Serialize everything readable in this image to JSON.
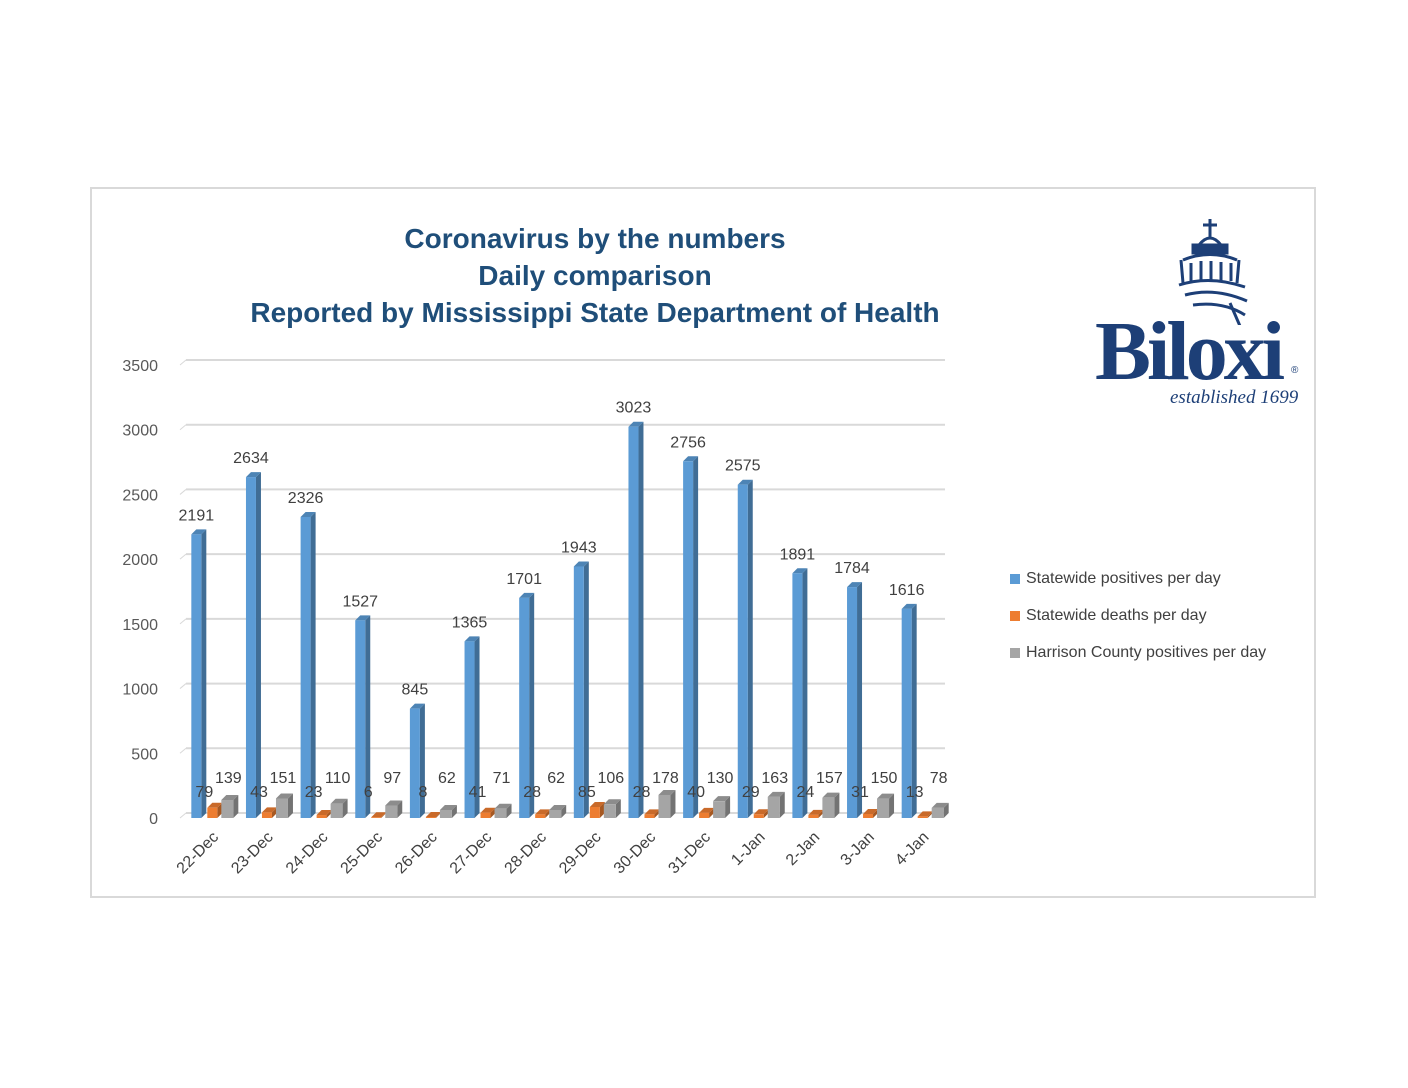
{
  "logo": {
    "name": "Biloxi",
    "tagline": "established 1699",
    "registered": "®"
  },
  "colors": {
    "positives": "#5b9bd5",
    "deaths": "#ed7d31",
    "harrison": "#a5a5a5",
    "title": "#1f4e79",
    "brand": "#1d3f77"
  },
  "chart_data": {
    "type": "bar",
    "title": [
      "Coronavirus by the numbers",
      "Daily comparison",
      "Reported by Mississippi State Department of Health"
    ],
    "xlabel": "",
    "ylabel": "",
    "ylim": [
      0,
      3500
    ],
    "yticks": [
      0,
      500,
      1000,
      1500,
      2000,
      2500,
      3000,
      3500
    ],
    "grid": true,
    "legend_position": "right",
    "categories": [
      "22-Dec",
      "23-Dec",
      "24-Dec",
      "25-Dec",
      "26-Dec",
      "27-Dec",
      "28-Dec",
      "29-Dec",
      "30-Dec",
      "31-Dec",
      "1-Jan",
      "2-Jan",
      "3-Jan",
      "4-Jan"
    ],
    "series": [
      {
        "name": "Statewide positives per day",
        "color": "#5b9bd5",
        "values": [
          2191,
          2634,
          2326,
          1527,
          845,
          1365,
          1701,
          1943,
          3023,
          2756,
          2575,
          1891,
          1784,
          1616
        ]
      },
      {
        "name": "Statewide deaths per day",
        "color": "#ed7d31",
        "values": [
          79,
          43,
          23,
          6,
          8,
          41,
          28,
          85,
          28,
          40,
          29,
          24,
          31,
          13
        ]
      },
      {
        "name": "Harrison County positives per day",
        "color": "#a5a5a5",
        "values": [
          139,
          151,
          110,
          97,
          62,
          71,
          62,
          106,
          178,
          130,
          163,
          157,
          150,
          78
        ]
      }
    ]
  }
}
